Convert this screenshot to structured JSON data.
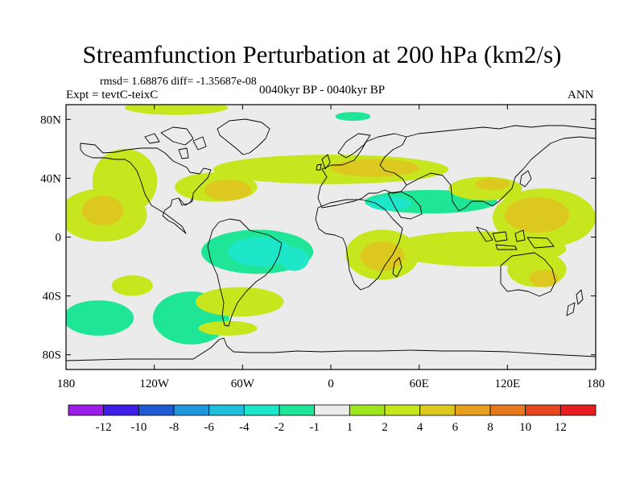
{
  "figure": {
    "title": "Streamfunction Perturbation at 200 hPa (km2/s)",
    "stats": "rmsd= 1.68876 diff= -1.35687e-08",
    "experiment": "Expt = tevtC-teixC",
    "period": "0040kyr BP - 0040kyr BP",
    "season": "ANN"
  },
  "map": {
    "projection": "cylindrical equidistant",
    "lon_range": [
      -180,
      180
    ],
    "lat_range": [
      -90,
      90
    ],
    "background_color": "#ebebeb",
    "lon_ticks": [
      {
        "value": -180,
        "label": "180"
      },
      {
        "value": -120,
        "label": "120W"
      },
      {
        "value": -60,
        "label": "60W"
      },
      {
        "value": 0,
        "label": "0"
      },
      {
        "value": 60,
        "label": "60E"
      },
      {
        "value": 120,
        "label": "120E"
      },
      {
        "value": 180,
        "label": "180"
      }
    ],
    "lat_ticks": [
      {
        "value": 80,
        "label": "80N"
      },
      {
        "value": 40,
        "label": "40N"
      },
      {
        "value": 0,
        "label": "0"
      },
      {
        "value": -40,
        "label": "40S"
      },
      {
        "value": -80,
        "label": "80S"
      }
    ]
  },
  "colorbar": {
    "colors": [
      "#9b1ee6",
      "#3c1ee6",
      "#1e5ad2",
      "#1e96dc",
      "#1ebedc",
      "#1ee6c8",
      "#1ee696",
      "#ebebeb",
      "#a0e61e",
      "#c8e61e",
      "#dcc81e",
      "#e6a01e",
      "#e6781e",
      "#e6461e",
      "#e61e1e"
    ],
    "labels": [
      "-12",
      "-10",
      "-8",
      "-6",
      "-4",
      "-2",
      "-1",
      "1",
      "2",
      "4",
      "6",
      "8",
      "10",
      "12"
    ]
  },
  "chart_data": {
    "type": "heatmap",
    "variable": "streamfunction perturbation at 200 hPa",
    "units": "km2/s",
    "contour_levels": [
      -12,
      -10,
      -8,
      -6,
      -4,
      -2,
      -1,
      1,
      2,
      4,
      6,
      8,
      10,
      12
    ],
    "anomalies": [
      {
        "lon": -140,
        "lat": 38,
        "rlon": 22,
        "rlat": 22,
        "level": 2
      },
      {
        "lon": -155,
        "lat": 15,
        "rlon": 30,
        "rlat": 18,
        "level": 2
      },
      {
        "lon": -155,
        "lat": 18,
        "rlon": 14,
        "rlat": 10,
        "level": 4
      },
      {
        "lon": -135,
        "lat": -33,
        "rlon": 14,
        "rlat": 7,
        "level": 2
      },
      {
        "lon": -158,
        "lat": -55,
        "rlon": 24,
        "rlat": 12,
        "level": -2
      },
      {
        "lon": -95,
        "lat": -55,
        "rlon": 26,
        "rlat": 18,
        "level": -2
      },
      {
        "lon": -105,
        "lat": 88,
        "rlon": 35,
        "rlat": 5,
        "level": 2
      },
      {
        "lon": -72,
        "lat": 77,
        "rlon": 22,
        "rlat": 13,
        "level": -1
      },
      {
        "lon": -55,
        "lat": 20,
        "rlon": 55,
        "rlat": 10,
        "level": -1
      },
      {
        "lon": -78,
        "lat": 34,
        "rlon": 28,
        "rlat": 10,
        "level": 2
      },
      {
        "lon": -70,
        "lat": 32,
        "rlon": 16,
        "rlat": 7,
        "level": 4
      },
      {
        "lon": -55,
        "lat": 70,
        "rlon": 8,
        "rlat": 8,
        "level": -1
      },
      {
        "lon": -55,
        "lat": -12,
        "rlon": 60,
        "rlat": 22,
        "level": -1
      },
      {
        "lon": -50,
        "lat": -10,
        "rlon": 38,
        "rlat": 15,
        "level": -2
      },
      {
        "lon": -48,
        "lat": -10,
        "rlon": 22,
        "rlat": 10,
        "level": -4
      },
      {
        "lon": -25,
        "lat": -15,
        "rlon": 10,
        "rlat": 8,
        "level": -4
      },
      {
        "lon": -62,
        "lat": -44,
        "rlon": 30,
        "rlat": 10,
        "level": 2
      },
      {
        "lon": -70,
        "lat": -62,
        "rlon": 20,
        "rlat": 5,
        "level": 2
      },
      {
        "lon": 0,
        "lat": 46,
        "rlon": 80,
        "rlat": 10,
        "level": 2
      },
      {
        "lon": 30,
        "lat": 47,
        "rlon": 30,
        "rlat": 6,
        "level": 4
      },
      {
        "lon": 20,
        "lat": 80,
        "rlon": 40,
        "rlat": 8,
        "level": -1
      },
      {
        "lon": 15,
        "lat": 82,
        "rlon": 12,
        "rlat": 3,
        "level": -2
      },
      {
        "lon": 75,
        "lat": 75,
        "rlon": 25,
        "rlat": 6,
        "level": -1
      },
      {
        "lon": 70,
        "lat": 23,
        "rlon": 75,
        "rlat": 14,
        "level": -1
      },
      {
        "lon": 68,
        "lat": 24,
        "rlon": 45,
        "rlat": 8,
        "level": -2
      },
      {
        "lon": 40,
        "lat": 23,
        "rlon": 15,
        "rlat": 5,
        "level": -4
      },
      {
        "lon": 105,
        "lat": 33,
        "rlon": 25,
        "rlat": 8,
        "level": 2
      },
      {
        "lon": 110,
        "lat": 36,
        "rlon": 12,
        "rlat": 4,
        "level": 4
      },
      {
        "lon": 145,
        "lat": 13,
        "rlon": 35,
        "rlat": 20,
        "level": 2
      },
      {
        "lon": 140,
        "lat": 15,
        "rlon": 22,
        "rlat": 12,
        "level": 4
      },
      {
        "lon": 170,
        "lat": 40,
        "rlon": 16,
        "rlat": 10,
        "level": -1
      },
      {
        "lon": 35,
        "lat": -12,
        "rlon": 25,
        "rlat": 17,
        "level": 2
      },
      {
        "lon": 35,
        "lat": -13,
        "rlon": 15,
        "rlat": 10,
        "level": 4
      },
      {
        "lon": 100,
        "lat": -8,
        "rlon": 60,
        "rlat": 12,
        "level": 2
      },
      {
        "lon": 140,
        "lat": -22,
        "rlon": 20,
        "rlat": 12,
        "level": 2
      },
      {
        "lon": 145,
        "lat": -28,
        "rlon": 10,
        "rlat": 6,
        "level": 4
      },
      {
        "lon": 172,
        "lat": -55,
        "rlon": 12,
        "rlat": 16,
        "level": -1
      },
      {
        "lon": 30,
        "lat": -45,
        "rlon": 30,
        "rlat": 6,
        "level": -1
      }
    ]
  }
}
